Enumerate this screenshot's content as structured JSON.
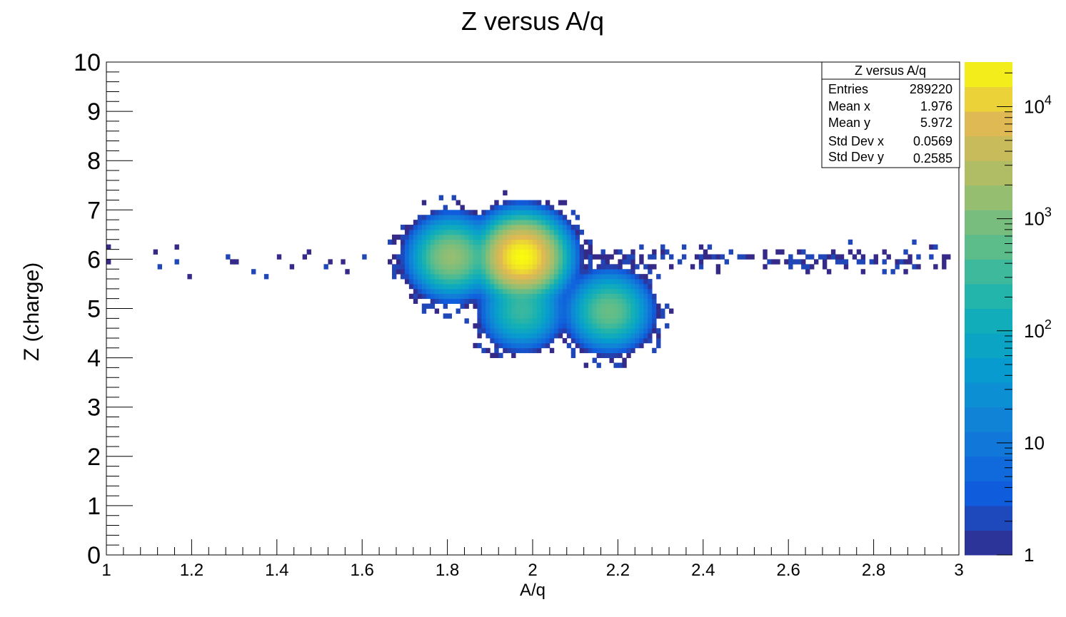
{
  "chart_data": {
    "type": "heatmap",
    "title": "Z versus A/q",
    "xlabel": "A/q",
    "ylabel": "Z (charge)",
    "xlim": [
      1,
      3
    ],
    "ylim": [
      0,
      10
    ],
    "log_z": true,
    "x_ticks": [
      "1",
      "1.2",
      "1.4",
      "1.6",
      "1.8",
      "2",
      "2.2",
      "2.4",
      "2.6",
      "2.8",
      "3"
    ],
    "y_ticks": [
      "0",
      "1",
      "2",
      "3",
      "4",
      "5",
      "6",
      "7",
      "8",
      "9",
      "10"
    ],
    "colorbar": {
      "range": [
        1,
        25000
      ],
      "ticks": [
        {
          "value": 1,
          "label": "1"
        },
        {
          "value": 10,
          "label": "10"
        },
        {
          "value": 100,
          "label": "10",
          "exponent": "2"
        },
        {
          "value": 1000,
          "label": "10",
          "exponent": "3"
        },
        {
          "value": 10000,
          "label": "10",
          "exponent": "4"
        }
      ]
    },
    "peaks": [
      {
        "x": 1.81,
        "y": 6.05,
        "peak_count": 1500
      },
      {
        "x": 1.975,
        "y": 6.05,
        "peak_count": 25000
      },
      {
        "x": 1.975,
        "y": 4.95,
        "peak_count": 300
      },
      {
        "x": 2.18,
        "y": 4.95,
        "peak_count": 700
      }
    ],
    "stats": {
      "title": "Z versus A/q",
      "rows": [
        {
          "label": "Entries",
          "value": "289220"
        },
        {
          "label": "Mean x",
          "value": "1.976"
        },
        {
          "label": "Mean y",
          "value": "5.972"
        },
        {
          "label": "Std Dev x",
          "value": "0.0569"
        },
        {
          "label": "Std Dev y",
          "value": "0.2585"
        }
      ]
    }
  }
}
